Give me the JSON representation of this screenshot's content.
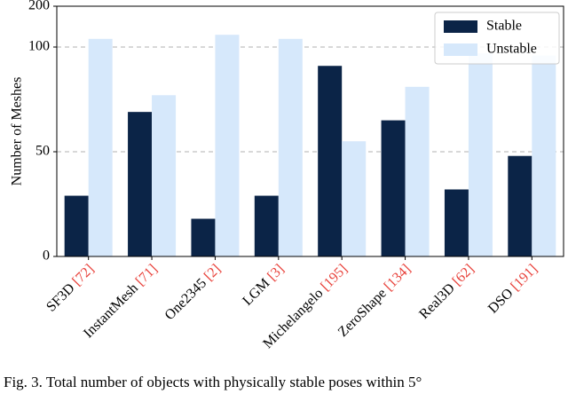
{
  "chart_data": {
    "type": "bar",
    "ylabel": "Number of Meshes",
    "categories": [
      "SF3D",
      "InstantMesh",
      "One2345",
      "LGM",
      "Michelangelo",
      "ZeroShape",
      "Real3D",
      "DSO"
    ],
    "refs": [
      "[72]",
      "[71]",
      "[2]",
      "[3]",
      "[195]",
      "[134]",
      "[62]",
      "[191]"
    ],
    "series": [
      {
        "name": "Stable",
        "color": "#0b2447",
        "values": [
          29,
          69,
          18,
          29,
          91,
          65,
          32,
          48
        ]
      },
      {
        "name": "Unstable",
        "color": "#d6e8fb",
        "values": [
          120,
          77,
          130,
          120,
          55,
          81,
          97,
          96
        ]
      }
    ],
    "ylim": [
      0,
      200
    ],
    "yticks": [
      0,
      50,
      100,
      200
    ],
    "grid": true,
    "legend": "upper right",
    "caption": "Fig. 3.  Total number of objects with physically stable poses within 5°"
  }
}
